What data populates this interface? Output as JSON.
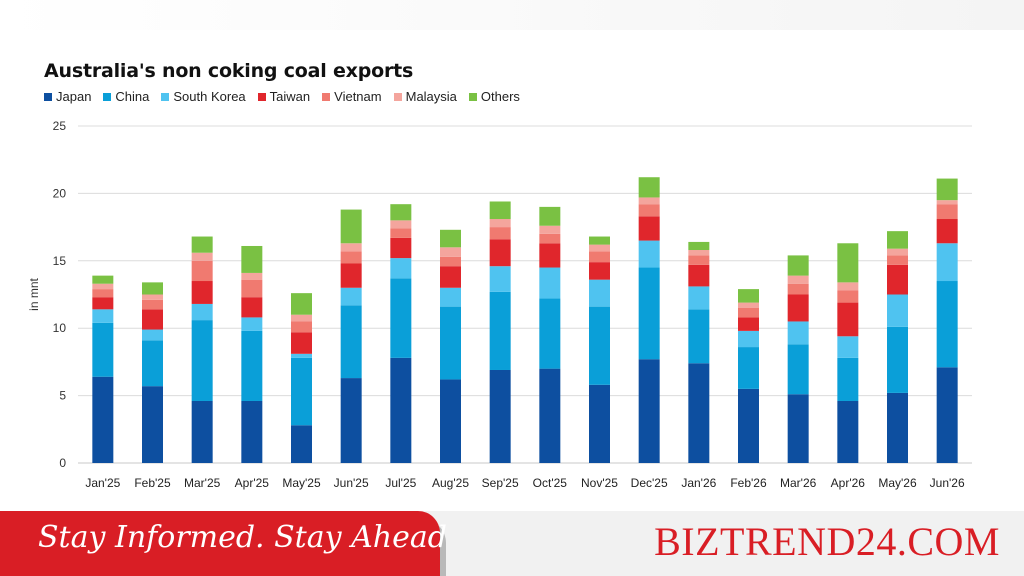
{
  "chart_data": {
    "type": "bar",
    "stacked": true,
    "title": "Australia's non coking coal exports",
    "ylabel": "in mnt",
    "xlabel": "",
    "ylim": [
      0,
      25
    ],
    "yticks": [
      0,
      5,
      10,
      15,
      20,
      25
    ],
    "grid": true,
    "legend_position": "top-left",
    "categories": [
      "Jan'25",
      "Feb'25",
      "Mar'25",
      "Apr'25",
      "May'25",
      "Jun'25",
      "Jul'25",
      "Aug'25",
      "Sep'25",
      "Oct'25",
      "Nov'25",
      "Dec'25",
      "Jan'26",
      "Feb'26",
      "Mar'26",
      "Apr'26",
      "May'26",
      "Jun'26"
    ],
    "series": [
      {
        "name": "Japan",
        "color": "#0d4fa0",
        "values": [
          6.4,
          5.7,
          4.6,
          4.6,
          2.8,
          6.3,
          7.8,
          6.2,
          6.9,
          7.0,
          5.8,
          7.7,
          7.4,
          5.5,
          5.1,
          4.6,
          5.2,
          7.1
        ]
      },
      {
        "name": "China",
        "color": "#0a9fd8",
        "values": [
          4.0,
          3.4,
          6.0,
          5.2,
          5.0,
          5.4,
          5.9,
          5.4,
          5.8,
          5.2,
          5.8,
          6.8,
          4.0,
          3.1,
          3.7,
          3.2,
          4.9,
          6.4
        ]
      },
      {
        "name": "South Korea",
        "color": "#4fc3f0",
        "values": [
          1.0,
          0.8,
          1.2,
          1.0,
          0.3,
          1.3,
          1.5,
          1.4,
          1.9,
          2.3,
          2.0,
          2.0,
          1.7,
          1.2,
          1.7,
          1.6,
          2.4,
          2.8
        ]
      },
      {
        "name": "Taiwan",
        "color": "#e0262c",
        "values": [
          0.9,
          1.5,
          1.7,
          1.5,
          1.6,
          1.8,
          1.5,
          1.6,
          2.0,
          1.8,
          1.3,
          1.8,
          1.6,
          1.0,
          2.0,
          2.5,
          2.2,
          1.8
        ]
      },
      {
        "name": "Vietnam",
        "color": "#f07a70",
        "values": [
          0.6,
          0.7,
          1.5,
          1.3,
          0.8,
          0.9,
          0.7,
          0.7,
          0.9,
          0.7,
          0.8,
          0.9,
          0.7,
          0.7,
          0.8,
          0.9,
          0.7,
          1.1
        ]
      },
      {
        "name": "Malaysia",
        "color": "#f4a59d",
        "values": [
          0.4,
          0.4,
          0.6,
          0.5,
          0.5,
          0.6,
          0.6,
          0.7,
          0.6,
          0.6,
          0.5,
          0.5,
          0.4,
          0.4,
          0.6,
          0.6,
          0.5,
          0.3
        ]
      },
      {
        "name": "Others",
        "color": "#7ac143",
        "values": [
          0.6,
          0.9,
          1.2,
          2.0,
          1.6,
          2.5,
          1.2,
          1.3,
          1.3,
          1.4,
          0.6,
          1.5,
          0.6,
          1.0,
          1.5,
          2.9,
          1.3,
          1.6
        ]
      }
    ]
  },
  "footer": {
    "tagline": "Stay Informed. Stay Ahead",
    "brand": "BIZTREND24.COM"
  }
}
